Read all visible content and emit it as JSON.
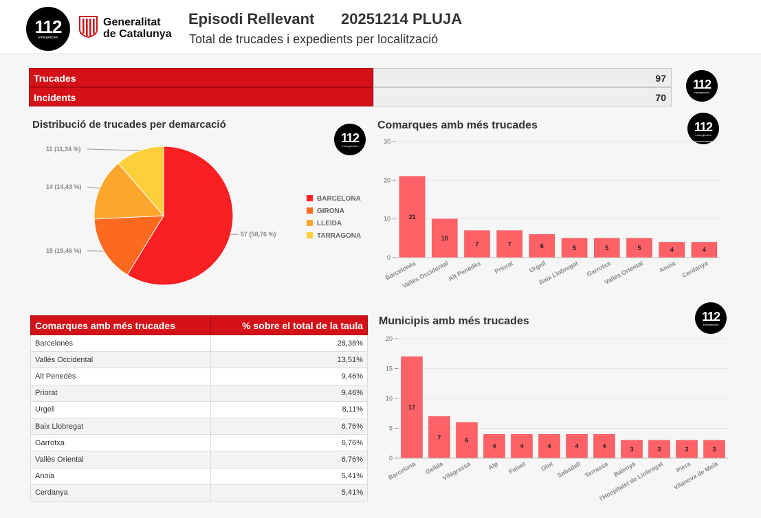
{
  "header": {
    "logo_number": "112",
    "logo_subtitle": "emergències",
    "org_line1": "Generalitat",
    "org_line2": "de Catalunya",
    "title": "Episodi Rellevant",
    "episode_code": "20251214 PLUJA",
    "subtitle": "Total de trucades i expedients per localització"
  },
  "summary": {
    "rows": [
      {
        "label": "Trucades",
        "value": "97"
      },
      {
        "label": "Incidents",
        "value": "70"
      }
    ]
  },
  "table": {
    "col1_header": "Comarques amb més trucades",
    "col2_header": "% sobre el total de la taula",
    "rows": [
      {
        "name": "Barcelonès",
        "pct": "28,38%"
      },
      {
        "name": "Vallès Occidental",
        "pct": "13,51%"
      },
      {
        "name": "Alt Penedès",
        "pct": "9,46%"
      },
      {
        "name": "Priorat",
        "pct": "9,46%"
      },
      {
        "name": "Urgell",
        "pct": "8,11%"
      },
      {
        "name": "Baix Llobregat",
        "pct": "6,76%"
      },
      {
        "name": "Garrotxa",
        "pct": "6,76%"
      },
      {
        "name": "Vallès Oriental",
        "pct": "6,76%"
      },
      {
        "name": "Anoia",
        "pct": "5,41%"
      },
      {
        "name": "Cerdanya",
        "pct": "5,41%"
      }
    ]
  },
  "colors": {
    "accent": "#d41119",
    "bar": "#ff6266",
    "grid": "#e6e6e6"
  },
  "chart_data": [
    {
      "type": "pie",
      "title": "Distribució de trucades per demarcació",
      "categories": [
        "BARCELONA",
        "GIRONA",
        "LLEIDA",
        "TARRAGONA"
      ],
      "values": [
        57,
        15,
        14,
        11
      ],
      "data_labels": [
        "57 (58,76 %)",
        "15 (15,46 %)",
        "14 (14,43 %)",
        "11 (11,34 %)"
      ],
      "colors": [
        "#f92023",
        "#fb6a1f",
        "#fca62e",
        "#fcd03a"
      ],
      "legend_position": "right"
    },
    {
      "type": "bar",
      "title": "Comarques amb més trucades",
      "categories": [
        "Barcelonès",
        "Vallès Occidental",
        "Alt Penedès",
        "Priorat",
        "Urgell",
        "Baix Llobregat",
        "Garrotxa",
        "Vallès Oriental",
        "Anoia",
        "Cerdanya"
      ],
      "values": [
        21,
        10,
        7,
        7,
        6,
        5,
        5,
        5,
        4,
        4
      ],
      "ylim": [
        0,
        30
      ],
      "yticks": [
        0,
        10,
        20,
        30
      ]
    },
    {
      "type": "bar",
      "title": "Municipis amb més trucades",
      "categories": [
        "Barcelona",
        "Gelida",
        "Vilagrassa",
        "Alp",
        "Falset",
        "Olot",
        "Sabadell",
        "Terrassa",
        "Balenyà",
        "l'Hospitalet de Llobregat",
        "Piera",
        "Vilanova de Meià"
      ],
      "values": [
        17,
        7,
        6,
        4,
        4,
        4,
        4,
        4,
        3,
        3,
        3,
        3
      ],
      "ylim": [
        0,
        20
      ],
      "yticks": [
        0,
        5,
        10,
        15,
        20
      ]
    }
  ]
}
